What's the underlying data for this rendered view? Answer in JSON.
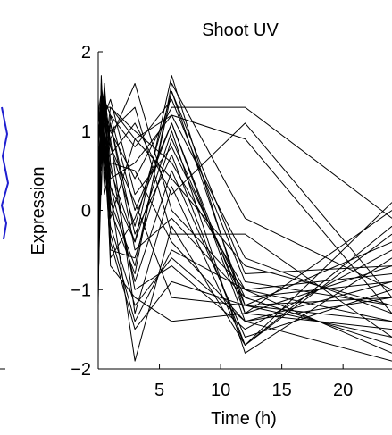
{
  "chart_data": {
    "type": "line",
    "title": "Shoot UV",
    "xlabel": "Time (h)",
    "ylabel": "Expression",
    "xlim": [
      0,
      24
    ],
    "ylim": [
      -2,
      2
    ],
    "xticks": [
      5,
      10,
      15,
      20
    ],
    "yticks": [
      -2,
      -1,
      0,
      1,
      2
    ],
    "ytick_labels": [
      "−2",
      "−1",
      "0",
      "1",
      "2"
    ],
    "x": [
      0,
      0.25,
      0.5,
      1,
      3,
      6,
      12,
      24
    ],
    "line_color": "#000000",
    "side_artifact_color": "#1f1fd0",
    "series": [
      {
        "values": [
          -1.2,
          1.6,
          1.2,
          0.3,
          -0.4,
          1.7,
          -1.3,
          -0.7
        ]
      },
      {
        "values": [
          0.2,
          1.3,
          1.5,
          0.8,
          -0.2,
          1.5,
          -1.2,
          -1.6
        ]
      },
      {
        "values": [
          -0.6,
          1.1,
          1.4,
          1.2,
          0.0,
          1.1,
          -1.4,
          -1.1
        ]
      },
      {
        "values": [
          0.8,
          1.5,
          0.9,
          -0.3,
          -1.4,
          -0.5,
          -1.0,
          -1.8
        ]
      },
      {
        "values": [
          1.1,
          0.9,
          1.6,
          0.6,
          -1.0,
          -0.7,
          -1.5,
          -0.5
        ]
      },
      {
        "values": [
          -0.9,
          0.4,
          1.2,
          1.0,
          0.4,
          1.3,
          1.3,
          -0.1
        ]
      },
      {
        "values": [
          0.5,
          1.2,
          1.0,
          0.2,
          -1.9,
          -0.2,
          -1.7,
          0.1
        ]
      },
      {
        "values": [
          -0.3,
          1.7,
          0.7,
          -0.5,
          -0.6,
          0.9,
          -1.2,
          -1.4
        ]
      },
      {
        "values": [
          1.4,
          0.6,
          1.3,
          1.3,
          0.9,
          0.4,
          -0.7,
          -1.2
        ]
      },
      {
        "values": [
          -1.0,
          1.0,
          0.5,
          0.9,
          1.6,
          0.0,
          -1.0,
          -0.8
        ]
      },
      {
        "values": [
          0.0,
          1.4,
          1.1,
          -0.7,
          -1.1,
          -1.4,
          -1.3,
          -1.5
        ]
      },
      {
        "values": [
          0.9,
          0.2,
          1.5,
          0.4,
          0.6,
          1.2,
          -0.6,
          -1.3
        ]
      },
      {
        "values": [
          -0.7,
          1.3,
          0.3,
          1.1,
          -0.3,
          0.7,
          -1.7,
          -0.2
        ]
      },
      {
        "values": [
          0.4,
          1.0,
          1.4,
          0.0,
          -0.8,
          1.6,
          -0.1,
          -1.0
        ]
      },
      {
        "values": [
          1.2,
          1.5,
          0.8,
          -0.2,
          -1.2,
          -0.6,
          -1.4,
          -0.9
        ]
      },
      {
        "values": [
          -0.4,
          0.8,
          1.2,
          1.4,
          0.2,
          0.8,
          -1.1,
          -1.7
        ]
      },
      {
        "values": [
          0.6,
          1.1,
          0.6,
          0.7,
          1.1,
          0.2,
          1.1,
          -1.1
        ]
      },
      {
        "values": [
          -1.1,
          1.6,
          1.0,
          0.5,
          -0.4,
          1.0,
          -1.8,
          -0.6
        ]
      },
      {
        "values": [
          0.3,
          0.7,
          1.6,
          -0.4,
          -1.5,
          -0.9,
          -1.2,
          -0.4
        ]
      },
      {
        "values": [
          1.0,
          1.2,
          0.4,
          1.2,
          0.8,
          1.4,
          -0.9,
          -1.2
        ]
      },
      {
        "values": [
          -0.2,
          1.4,
          1.3,
          0.3,
          -0.9,
          0.5,
          -1.6,
          -1.0
        ]
      },
      {
        "values": [
          0.7,
          0.5,
          1.1,
          1.0,
          1.3,
          -0.3,
          -0.3,
          -1.6
        ]
      },
      {
        "values": [
          -0.8,
          1.2,
          0.9,
          -0.6,
          -0.1,
          1.1,
          -1.3,
          0.0
        ]
      },
      {
        "values": [
          1.3,
          1.0,
          1.5,
          0.8,
          0.1,
          -1.1,
          -1.2,
          -1.1
        ]
      },
      {
        "values": [
          0.1,
          1.5,
          0.7,
          1.3,
          1.0,
          0.6,
          -1.0,
          -1.4
        ]
      },
      {
        "values": [
          -0.5,
          0.9,
          1.4,
          0.1,
          -0.7,
          1.5,
          -0.8,
          -0.7
        ]
      },
      {
        "values": [
          0.8,
          1.3,
          0.2,
          0.6,
          0.5,
          -0.4,
          -1.4,
          -1.9
        ]
      },
      {
        "values": [
          -1.0,
          1.1,
          1.2,
          0.9,
          -1.3,
          0.3,
          -1.7,
          -0.3
        ]
      },
      {
        "values": [
          0.5,
          0.6,
          1.0,
          -0.1,
          0.9,
          1.2,
          0.9,
          -1.3
        ]
      },
      {
        "values": [
          1.1,
          1.4,
          0.6,
          1.1,
          -0.5,
          -0.1,
          -1.1,
          -0.9
        ]
      }
    ]
  }
}
